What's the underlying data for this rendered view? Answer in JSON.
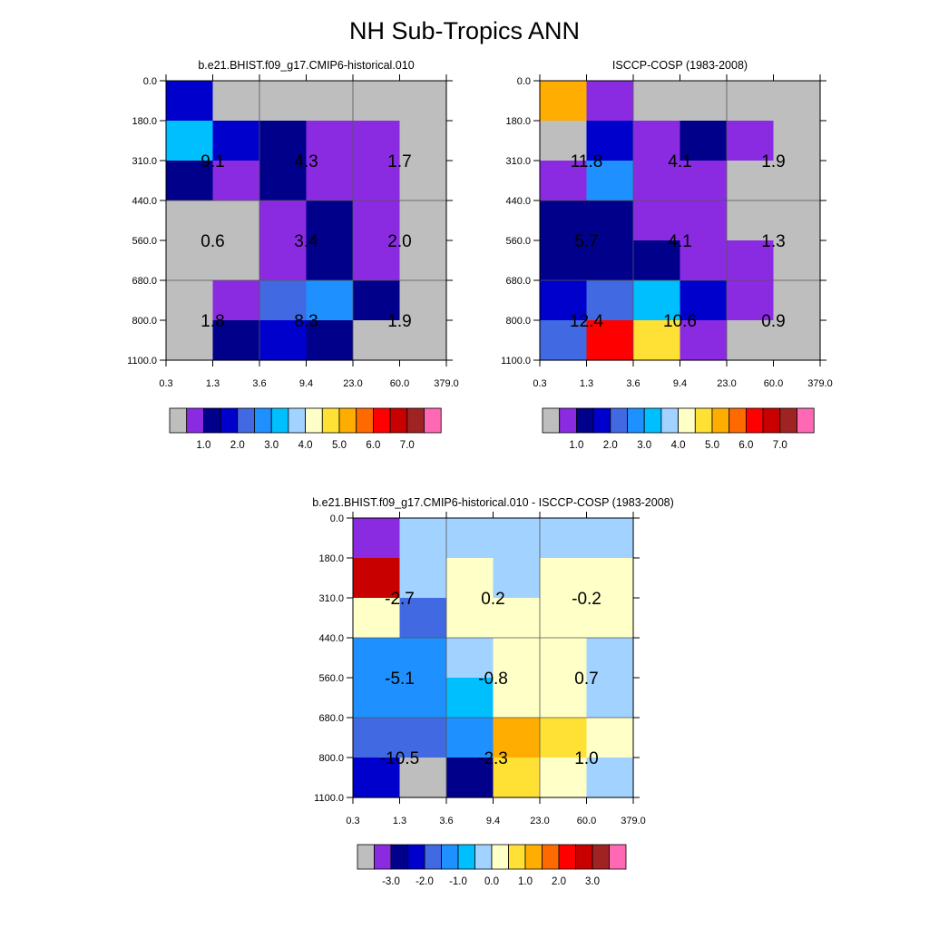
{
  "figure_title": "NH Sub-Tropics ANN",
  "palette": {
    "C0": "#bebebe",
    "C1": "#8a2be2",
    "C2": "#00008b",
    "C3": "#0000cd",
    "C4": "#4169e1",
    "C5": "#1e90ff",
    "C6": "#00bfff",
    "C7": "#a2d2ff",
    "C8": "#ffffc8",
    "C9": "#ffe135",
    "C10": "#ffad00",
    "C11": "#ff6a00",
    "C12": "#ff0000",
    "C13": "#c80000",
    "C14": "#a02323",
    "C15": "#ff69b4"
  },
  "chart_data": [
    {
      "type": "heatmap",
      "title": "b.e21.BHIST.f09_g17.CMIP6-historical.010",
      "x_tick_labels": [
        "0.3",
        "1.3",
        "3.6",
        "9.4",
        "23.0",
        "60.0",
        "379.0"
      ],
      "y_tick_labels": [
        "0.0",
        "180.0",
        "310.0",
        "440.0",
        "560.0",
        "680.0",
        "800.0",
        "1100.0"
      ],
      "cell_color_levels": [
        [
          "C3",
          "C0",
          "C0",
          "C0",
          "C0",
          "C0"
        ],
        [
          "C6",
          "C3",
          "C2",
          "C1",
          "C1",
          "C0"
        ],
        [
          "C2",
          "C1",
          "C2",
          "C1",
          "C1",
          "C0"
        ],
        [
          "C0",
          "C0",
          "C1",
          "C2",
          "C1",
          "C0"
        ],
        [
          "C0",
          "C0",
          "C1",
          "C2",
          "C1",
          "C0"
        ],
        [
          "C0",
          "C1",
          "C4",
          "C5",
          "C2",
          "C0"
        ],
        [
          "C0",
          "C2",
          "C3",
          "C2",
          "C0",
          "C0"
        ]
      ],
      "block_labels": [
        {
          "row": 0,
          "col": 0,
          "text": "9.1"
        },
        {
          "row": 0,
          "col": 1,
          "text": "4.3"
        },
        {
          "row": 0,
          "col": 2,
          "text": "1.7"
        },
        {
          "row": 1,
          "col": 0,
          "text": "0.6"
        },
        {
          "row": 1,
          "col": 1,
          "text": "3.4"
        },
        {
          "row": 1,
          "col": 2,
          "text": "2.0"
        },
        {
          "row": 2,
          "col": 0,
          "text": "1.8"
        },
        {
          "row": 2,
          "col": 1,
          "text": "8.3"
        },
        {
          "row": 2,
          "col": 2,
          "text": "1.9"
        }
      ],
      "colorbar": {
        "levels": [
          "C0",
          "C1",
          "C2",
          "C3",
          "C4",
          "C5",
          "C6",
          "C7",
          "C8",
          "C9",
          "C10",
          "C11",
          "C12",
          "C13",
          "C14",
          "C15"
        ],
        "tick_labels": [
          "1.0",
          "2.0",
          "3.0",
          "4.0",
          "5.0",
          "6.0",
          "7.0"
        ]
      }
    },
    {
      "type": "heatmap",
      "title": "ISCCP-COSP (1983-2008)",
      "x_tick_labels": [
        "0.3",
        "1.3",
        "3.6",
        "9.4",
        "23.0",
        "60.0",
        "379.0"
      ],
      "y_tick_labels": [
        "0.0",
        "180.0",
        "310.0",
        "440.0",
        "560.0",
        "680.0",
        "800.0",
        "1100.0"
      ],
      "cell_color_levels": [
        [
          "C10",
          "C1",
          "C0",
          "C0",
          "C0",
          "C0"
        ],
        [
          "C0",
          "C3",
          "C1",
          "C2",
          "C1",
          "C0"
        ],
        [
          "C1",
          "C5",
          "C1",
          "C1",
          "C0",
          "C0"
        ],
        [
          "C2",
          "C2",
          "C1",
          "C1",
          "C0",
          "C0"
        ],
        [
          "C2",
          "C2",
          "C2",
          "C1",
          "C1",
          "C0"
        ],
        [
          "C3",
          "C4",
          "C6",
          "C3",
          "C1",
          "C0"
        ],
        [
          "C4",
          "C12",
          "C9",
          "C1",
          "C0",
          "C0"
        ]
      ],
      "block_labels": [
        {
          "row": 0,
          "col": 0,
          "text": "11.8"
        },
        {
          "row": 0,
          "col": 1,
          "text": "4.1"
        },
        {
          "row": 0,
          "col": 2,
          "text": "1.9"
        },
        {
          "row": 1,
          "col": 0,
          "text": "5.7"
        },
        {
          "row": 1,
          "col": 1,
          "text": "4.1"
        },
        {
          "row": 1,
          "col": 2,
          "text": "1.3"
        },
        {
          "row": 2,
          "col": 0,
          "text": "12.4"
        },
        {
          "row": 2,
          "col": 1,
          "text": "10.6"
        },
        {
          "row": 2,
          "col": 2,
          "text": "0.9"
        }
      ],
      "colorbar": {
        "levels": [
          "C0",
          "C1",
          "C2",
          "C3",
          "C4",
          "C5",
          "C6",
          "C7",
          "C8",
          "C9",
          "C10",
          "C11",
          "C12",
          "C13",
          "C14",
          "C15"
        ],
        "tick_labels": [
          "1.0",
          "2.0",
          "3.0",
          "4.0",
          "5.0",
          "6.0",
          "7.0"
        ]
      }
    },
    {
      "type": "heatmap",
      "title": "b.e21.BHIST.f09_g17.CMIP6-historical.010 - ISCCP-COSP (1983-2008)",
      "x_tick_labels": [
        "0.3",
        "1.3",
        "3.6",
        "9.4",
        "23.0",
        "60.0",
        "379.0"
      ],
      "y_tick_labels": [
        "0.0",
        "180.0",
        "310.0",
        "440.0",
        "560.0",
        "680.0",
        "800.0",
        "1100.0"
      ],
      "cell_color_levels": [
        [
          "C1",
          "C7",
          "C7",
          "C7",
          "C7",
          "C7"
        ],
        [
          "C13",
          "C7",
          "C8",
          "C7",
          "C8",
          "C8"
        ],
        [
          "C8",
          "C4",
          "C8",
          "C8",
          "C8",
          "C8"
        ],
        [
          "C5",
          "C5",
          "C7",
          "C8",
          "C8",
          "C7"
        ],
        [
          "C5",
          "C5",
          "C6",
          "C8",
          "C8",
          "C7"
        ],
        [
          "C4",
          "C4",
          "C5",
          "C10",
          "C9",
          "C8"
        ],
        [
          "C3",
          "C0",
          "C2",
          "C9",
          "C8",
          "C7"
        ]
      ],
      "block_labels": [
        {
          "row": 0,
          "col": 0,
          "text": "-2.7"
        },
        {
          "row": 0,
          "col": 1,
          "text": "0.2"
        },
        {
          "row": 0,
          "col": 2,
          "text": "-0.2"
        },
        {
          "row": 1,
          "col": 0,
          "text": "-5.1"
        },
        {
          "row": 1,
          "col": 1,
          "text": "-0.8"
        },
        {
          "row": 1,
          "col": 2,
          "text": "0.7"
        },
        {
          "row": 2,
          "col": 0,
          "text": "-10.5"
        },
        {
          "row": 2,
          "col": 1,
          "text": "-2.3"
        },
        {
          "row": 2,
          "col": 2,
          "text": "1.0"
        }
      ],
      "colorbar": {
        "levels": [
          "C0",
          "C1",
          "C2",
          "C3",
          "C4",
          "C5",
          "C6",
          "C7",
          "C8",
          "C9",
          "C10",
          "C11",
          "C12",
          "C13",
          "C14",
          "C15"
        ],
        "tick_labels": [
          "-3.0",
          "-2.0",
          "-1.0",
          "0.0",
          "1.0",
          "2.0",
          "3.0"
        ]
      }
    }
  ]
}
